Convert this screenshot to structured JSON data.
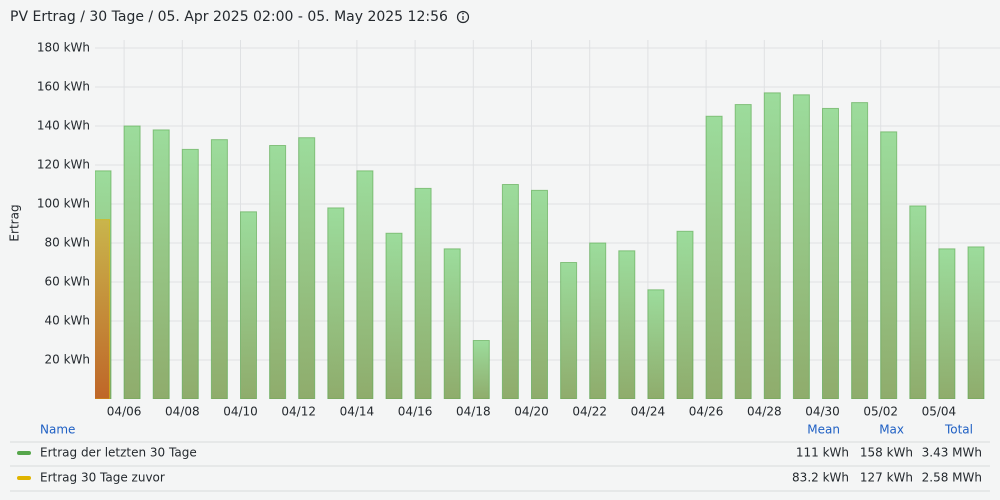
{
  "title": "PV Ertrag / 30 Tage / 05. Apr 2025 02:00 - 05. May 2025 12:56",
  "chart_data": {
    "type": "bar",
    "y_label": "Ertrag",
    "categories": [
      null,
      "04/06",
      null,
      "04/08",
      null,
      "04/10",
      null,
      "04/12",
      null,
      "04/14",
      null,
      "04/16",
      null,
      "04/18",
      null,
      "04/20",
      null,
      "04/22",
      null,
      "04/24",
      null,
      "04/26",
      null,
      "04/28",
      null,
      "04/30",
      null,
      "05/02",
      null,
      "05/04",
      null
    ],
    "series": [
      {
        "name": "Ertrag der letzten 30 Tage",
        "color": "#56a64b",
        "values": [
          117,
          140,
          138,
          128,
          133,
          96,
          130,
          134,
          98,
          117,
          85,
          108,
          77,
          30,
          110,
          107,
          70,
          80,
          76,
          56,
          86,
          145,
          151,
          157,
          156,
          149,
          152,
          137,
          99,
          77,
          78
        ]
      },
      {
        "name": "Ertrag 30 Tage zuvor",
        "color": "#e0b400",
        "values": [
          92,
          null,
          null,
          null,
          null,
          null,
          null,
          null,
          null,
          null,
          null,
          null,
          null,
          null,
          null,
          null,
          null,
          null,
          null,
          null,
          null,
          null,
          null,
          null,
          null,
          null,
          null,
          null,
          null,
          null,
          null
        ]
      }
    ],
    "ylim": [
      0,
      180
    ],
    "yticks": [
      {
        "value": 20,
        "label": "20 kWh"
      },
      {
        "value": 40,
        "label": "40 kWh"
      },
      {
        "value": 60,
        "label": "60 kWh"
      },
      {
        "value": 80,
        "label": "80 kWh"
      },
      {
        "value": 100,
        "label": "100 kWh"
      },
      {
        "value": 120,
        "label": "120 kWh"
      },
      {
        "value": 140,
        "label": "140 kWh"
      },
      {
        "value": 160,
        "label": "160 kWh"
      },
      {
        "value": 180,
        "label": "180 kWh"
      }
    ],
    "grid": true,
    "legend": {
      "columns": [
        "Name",
        "Mean",
        "Max",
        "Total"
      ],
      "rows": [
        [
          "111 kWh",
          "158 kWh",
          "3.43 MWh"
        ],
        [
          "83.2 kWh",
          "127 kWh",
          "2.58 MWh"
        ]
      ]
    }
  }
}
